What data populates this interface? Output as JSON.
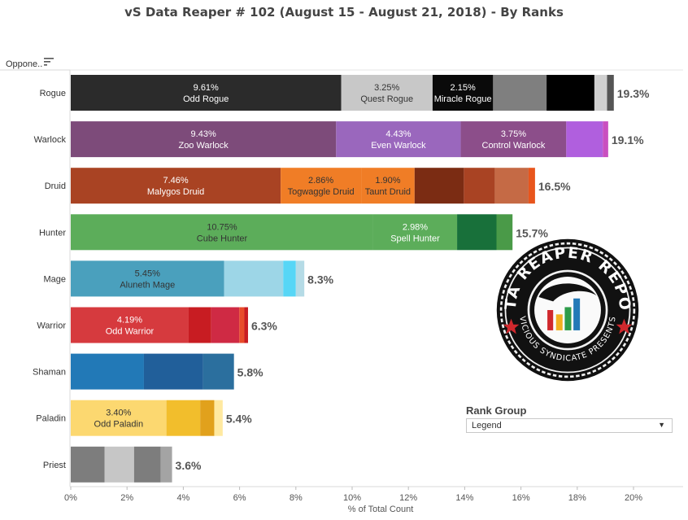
{
  "title": "vS Data Reaper #  102 (August 15 - August 21, 2018) - By Ranks",
  "column_header": "Oppone..",
  "logo": {
    "top_text": "DATA REAPER REPORT",
    "bottom_text": "VICIOUS SYNDICATE PRESENTS"
  },
  "legend": {
    "title": "Rank Group",
    "selected": "Legend"
  },
  "chart_data": {
    "type": "bar",
    "orientation": "horizontal",
    "stacked": true,
    "xlabel": "% of Total Count",
    "xlim": [
      0,
      22
    ],
    "x_ticks": [
      "0%",
      "2%",
      "4%",
      "6%",
      "8%",
      "10%",
      "12%",
      "14%",
      "16%",
      "18%",
      "20%"
    ],
    "grid": false,
    "rows": [
      {
        "name": "Rogue",
        "total": "19.3%",
        "segments": [
          {
            "value": 9.61,
            "color": "#2b2b2b",
            "pct": "9.61%",
            "label": "Odd Rogue"
          },
          {
            "value": 3.25,
            "color": "#c8c8c8",
            "pct": "3.25%",
            "label": "Quest Rogue",
            "dark": true
          },
          {
            "value": 2.15,
            "color": "#0a0a0a",
            "pct": "2.15%",
            "label": "Miracle Rogue"
          },
          {
            "value": 1.9,
            "color": "#7f7f7f"
          },
          {
            "value": 1.7,
            "color": "#000000"
          },
          {
            "value": 0.45,
            "color": "#d0d0d0"
          },
          {
            "value": 0.24,
            "color": "#555555"
          }
        ]
      },
      {
        "name": "Warlock",
        "total": "19.1%",
        "segments": [
          {
            "value": 9.43,
            "color": "#7d4b7a",
            "pct": "9.43%",
            "label": "Zoo Warlock"
          },
          {
            "value": 4.43,
            "color": "#9a67bd",
            "pct": "4.43%",
            "label": "Even Warlock"
          },
          {
            "value": 3.75,
            "color": "#8c4e8a",
            "pct": "3.75%",
            "label": "Control Warlock"
          },
          {
            "value": 1.3,
            "color": "#b05fde"
          },
          {
            "value": 0.19,
            "color": "#c94fc0"
          }
        ]
      },
      {
        "name": "Druid",
        "total": "16.5%",
        "segments": [
          {
            "value": 7.46,
            "color": "#a94323",
            "pct": "7.46%",
            "label": "Malygos Druid"
          },
          {
            "value": 2.86,
            "color": "#f07d26",
            "pct": "2.86%",
            "label": "Togwaggle Druid",
            "dark": true
          },
          {
            "value": 1.9,
            "color": "#f07d26",
            "pct": "1.90%",
            "label": "Taunt Druid",
            "dark": true
          },
          {
            "value": 1.75,
            "color": "#7b2c13"
          },
          {
            "value": 1.1,
            "color": "#a94323"
          },
          {
            "value": 1.2,
            "color": "#c56a45"
          },
          {
            "value": 0.23,
            "color": "#e8551c"
          }
        ]
      },
      {
        "name": "Hunter",
        "total": "15.7%",
        "segments": [
          {
            "value": 10.75,
            "color": "#5cad5a",
            "pct": "10.75%",
            "label": "Cube Hunter",
            "dark": true
          },
          {
            "value": 2.98,
            "color": "#5cad5a",
            "pct": "2.98%",
            "label": "Spell Hunter"
          },
          {
            "value": 1.4,
            "color": "#18703a"
          },
          {
            "value": 0.57,
            "color": "#4a9a48"
          }
        ]
      },
      {
        "name": "Mage",
        "total": "8.3%",
        "segments": [
          {
            "value": 5.45,
            "color": "#4aa0bd",
            "pct": "5.45%",
            "label": "Aluneth Mage",
            "dark": true
          },
          {
            "value": 2.1,
            "color": "#9dd6e7"
          },
          {
            "value": 0.45,
            "color": "#57d6f6"
          },
          {
            "value": 0.3,
            "color": "#b5dbe6"
          }
        ]
      },
      {
        "name": "Warrior",
        "total": "6.3%",
        "segments": [
          {
            "value": 4.19,
            "color": "#d63a3e",
            "pct": "4.19%",
            "label": "Odd Warrior"
          },
          {
            "value": 0.8,
            "color": "#c81c22"
          },
          {
            "value": 1.0,
            "color": "#cf2a44"
          },
          {
            "value": 0.18,
            "color": "#e84b2a"
          },
          {
            "value": 0.13,
            "color": "#c81c22"
          }
        ]
      },
      {
        "name": "Shaman",
        "total": "5.8%",
        "segments": [
          {
            "value": 2.6,
            "color": "#2279b7"
          },
          {
            "value": 2.1,
            "color": "#215f9a"
          },
          {
            "value": 1.1,
            "color": "#2b6f9e"
          }
        ]
      },
      {
        "name": "Paladin",
        "total": "5.4%",
        "segments": [
          {
            "value": 3.4,
            "color": "#fcd870",
            "pct": "3.40%",
            "label": "Odd Paladin",
            "dark": true
          },
          {
            "value": 1.2,
            "color": "#f2be2c"
          },
          {
            "value": 0.5,
            "color": "#e1a11c"
          },
          {
            "value": 0.3,
            "color": "#ffe9a0"
          }
        ]
      },
      {
        "name": "Priest",
        "total": "3.6%",
        "segments": [
          {
            "value": 1.2,
            "color": "#7d7d7d"
          },
          {
            "value": 1.05,
            "color": "#c6c6c6"
          },
          {
            "value": 0.95,
            "color": "#7d7d7d"
          },
          {
            "value": 0.4,
            "color": "#a4a4a4"
          }
        ]
      }
    ]
  }
}
